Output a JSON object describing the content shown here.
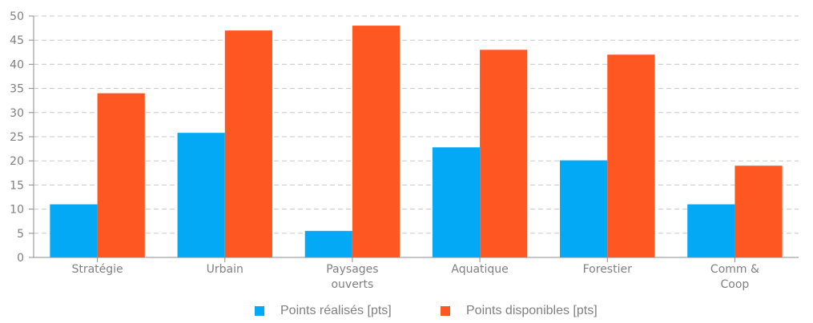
{
  "chart_data": {
    "type": "bar",
    "categories": [
      [
        "Stratégie"
      ],
      [
        "Urbain"
      ],
      [
        "Paysages",
        "ouverts"
      ],
      [
        "Aquatique"
      ],
      [
        "Forestier"
      ],
      [
        "Comm &",
        "Coop"
      ]
    ],
    "series": [
      {
        "name": "Points réalisés [pts]",
        "color": "#03A9F4",
        "values": [
          11,
          25.8,
          5.5,
          22.8,
          20.1,
          11
        ]
      },
      {
        "name": "Points disponibles [pts]",
        "color": "#FF5722",
        "values": [
          34,
          47,
          48,
          43,
          42,
          19
        ]
      }
    ],
    "y_ticks": [
      0,
      5,
      10,
      15,
      20,
      25,
      30,
      35,
      40,
      45,
      50
    ],
    "ylim": [
      0,
      50
    ],
    "grid": true,
    "legend": "bottom-center",
    "xlabel": "",
    "ylabel": ""
  }
}
